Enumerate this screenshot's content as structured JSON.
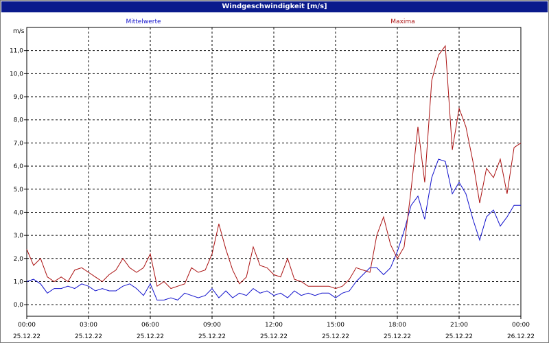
{
  "window": {
    "title": "Windgeschwindigkeit [m/s]"
  },
  "colors": {
    "mean": "#1010cc",
    "max": "#aa1010",
    "titlebar": "#0a1a8c"
  },
  "chart_data": {
    "type": "line",
    "title": "Windgeschwindigkeit [m/s]",
    "ylabel": "m/s",
    "xlabel": "",
    "ylim": [
      -0.5,
      12
    ],
    "xlim": [
      0,
      24
    ],
    "grid": true,
    "legend_placement": "top",
    "y_ticks": [
      "0,0",
      "1,0",
      "2,0",
      "3,0",
      "4,0",
      "5,0",
      "6,0",
      "7,0",
      "8,0",
      "9,0",
      "10,0",
      "11,0"
    ],
    "x_ticks": [
      {
        "time": "00:00",
        "date": "25.12.22"
      },
      {
        "time": "03:00",
        "date": "25.12.22"
      },
      {
        "time": "06:00",
        "date": "25.12.22"
      },
      {
        "time": "09:00",
        "date": "25.12.22"
      },
      {
        "time": "12:00",
        "date": "25.12.22"
      },
      {
        "time": "15:00",
        "date": "25.12.22"
      },
      {
        "time": "18:00",
        "date": "25.12.22"
      },
      {
        "time": "21:00",
        "date": "25.12.22"
      },
      {
        "time": "00:00",
        "date": "26.12.22"
      }
    ],
    "series": [
      {
        "name": "Mittelwerte",
        "color": "#1010cc",
        "x": [
          0,
          0.33,
          0.67,
          1,
          1.33,
          1.67,
          2,
          2.33,
          2.67,
          3,
          3.33,
          3.67,
          4,
          4.33,
          4.67,
          5,
          5.33,
          5.67,
          6,
          6.33,
          6.67,
          7,
          7.33,
          7.67,
          8,
          8.33,
          8.67,
          9,
          9.33,
          9.67,
          10,
          10.33,
          10.67,
          11,
          11.33,
          11.67,
          12,
          12.33,
          12.67,
          13,
          13.33,
          13.67,
          14,
          14.33,
          14.67,
          15,
          15.33,
          15.67,
          16,
          16.33,
          16.67,
          17,
          17.33,
          17.67,
          18,
          18.33,
          18.67,
          19,
          19.33,
          19.67,
          20,
          20.33,
          20.67,
          21,
          21.33,
          21.67,
          22,
          22.33,
          22.67,
          23,
          23.33,
          23.67,
          24
        ],
        "y": [
          1.0,
          1.1,
          0.9,
          0.5,
          0.7,
          0.7,
          0.8,
          0.7,
          0.9,
          0.8,
          0.6,
          0.7,
          0.6,
          0.6,
          0.8,
          0.9,
          0.7,
          0.4,
          0.9,
          0.2,
          0.2,
          0.3,
          0.2,
          0.5,
          0.4,
          0.3,
          0.4,
          0.7,
          0.3,
          0.6,
          0.3,
          0.5,
          0.4,
          0.7,
          0.5,
          0.6,
          0.4,
          0.5,
          0.3,
          0.6,
          0.4,
          0.5,
          0.4,
          0.5,
          0.5,
          0.3,
          0.5,
          0.6,
          1.0,
          1.3,
          1.6,
          1.6,
          1.3,
          1.6,
          2.3,
          3.2,
          4.3,
          4.7,
          3.7,
          5.5,
          6.3,
          6.2,
          4.8,
          5.3,
          4.8,
          3.7,
          2.8,
          3.8,
          4.1,
          3.4,
          3.8,
          4.3,
          4.3
        ]
      },
      {
        "name": "Maxima",
        "color": "#aa1010",
        "x": [
          0,
          0.33,
          0.67,
          1,
          1.33,
          1.67,
          2,
          2.33,
          2.67,
          3,
          3.33,
          3.67,
          4,
          4.33,
          4.67,
          5,
          5.33,
          5.67,
          6,
          6.33,
          6.67,
          7,
          7.33,
          7.67,
          8,
          8.33,
          8.67,
          9,
          9.33,
          9.67,
          10,
          10.33,
          10.67,
          11,
          11.33,
          11.67,
          12,
          12.33,
          12.67,
          13,
          13.33,
          13.67,
          14,
          14.33,
          14.67,
          15,
          15.33,
          15.67,
          16,
          16.33,
          16.67,
          17,
          17.33,
          17.67,
          18,
          18.33,
          18.67,
          19,
          19.33,
          19.67,
          20,
          20.33,
          20.67,
          21,
          21.33,
          21.67,
          22,
          22.33,
          22.67,
          23,
          23.33,
          23.67,
          24
        ],
        "y": [
          2.4,
          1.7,
          2.0,
          1.2,
          1.0,
          1.2,
          1.0,
          1.5,
          1.6,
          1.4,
          1.2,
          1.0,
          1.3,
          1.5,
          2.0,
          1.6,
          1.4,
          1.6,
          2.2,
          0.8,
          1.0,
          0.7,
          0.8,
          0.9,
          1.6,
          1.4,
          1.5,
          2.2,
          3.5,
          2.4,
          1.5,
          0.9,
          1.2,
          2.5,
          1.7,
          1.6,
          1.3,
          1.2,
          2.0,
          1.1,
          1.0,
          0.8,
          0.8,
          0.8,
          0.8,
          0.7,
          0.8,
          1.1,
          1.6,
          1.5,
          1.4,
          3.0,
          3.8,
          2.6,
          2.0,
          2.5,
          5.0,
          7.7,
          5.3,
          9.7,
          10.8,
          11.2,
          6.7,
          8.5,
          7.7,
          6.2,
          4.4,
          5.9,
          5.5,
          6.3,
          4.8,
          6.8,
          7.0
        ]
      }
    ]
  }
}
